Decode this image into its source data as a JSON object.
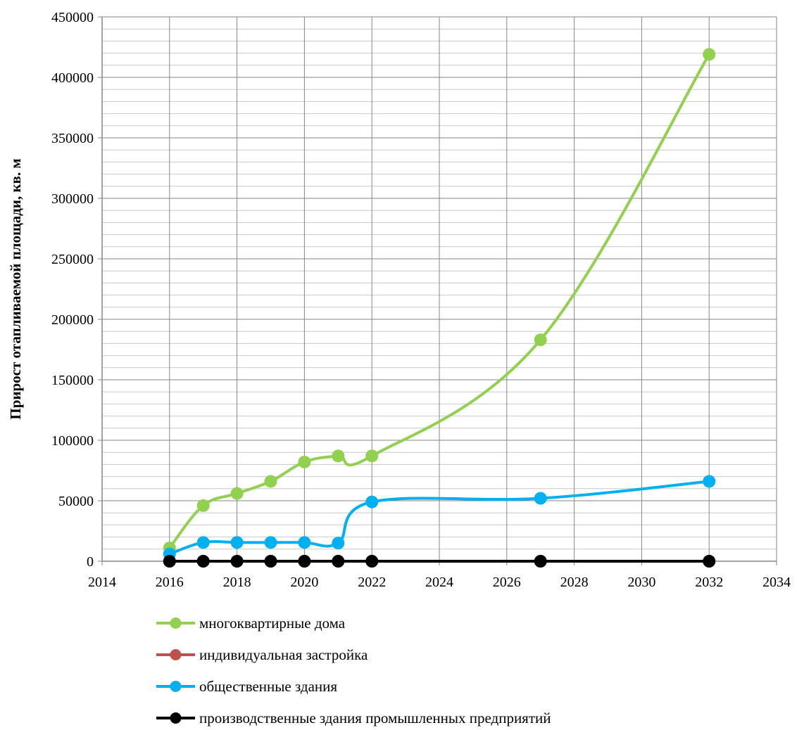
{
  "chart_data": {
    "type": "line",
    "title": "",
    "xlabel": "",
    "ylabel": "Прирост отапливаемой площади, кв. м",
    "xlim": [
      2014,
      2034
    ],
    "ylim": [
      0,
      450000
    ],
    "x_ticks": [
      2014,
      2016,
      2018,
      2020,
      2022,
      2024,
      2026,
      2028,
      2030,
      2032,
      2034
    ],
    "y_ticks": [
      0,
      50000,
      100000,
      150000,
      200000,
      250000,
      300000,
      350000,
      400000,
      450000
    ],
    "x_tick_labels": [
      "2014",
      "2016",
      "2018",
      "2020",
      "2022",
      "2024",
      "2026",
      "2028",
      "2030",
      "2032",
      "2034"
    ],
    "y_tick_labels": [
      "0",
      "50000",
      "100000",
      "150000",
      "200000",
      "250000",
      "300000",
      "350000",
      "400000",
      "450000"
    ],
    "grid": true,
    "minor_y_step": 10000,
    "legend_position": "bottom",
    "series": [
      {
        "name": "многоквартирные дома",
        "color": "#92D050",
        "x": [
          2016,
          2017,
          2018,
          2019,
          2020,
          2021,
          2022,
          2027,
          2032
        ],
        "y": [
          11000,
          46000,
          56000,
          66000,
          82000,
          87000,
          87000,
          183000,
          419000
        ]
      },
      {
        "name": "индивидуальная застройка",
        "color": "#C0504D",
        "x": [
          2016,
          2017,
          2018,
          2019,
          2020,
          2021,
          2022,
          2027,
          2032
        ],
        "y": [
          0,
          0,
          0,
          0,
          0,
          0,
          0,
          0,
          0
        ]
      },
      {
        "name": "общественные здания",
        "color": "#00B0F0",
        "x": [
          2016,
          2017,
          2018,
          2019,
          2020,
          2021,
          2022,
          2027,
          2032
        ],
        "y": [
          6000,
          15500,
          15500,
          15500,
          15500,
          15000,
          49000,
          52000,
          66000
        ]
      },
      {
        "name": "производственные здания промышленных предприятий",
        "color": "#000000",
        "x": [
          2016,
          2017,
          2018,
          2019,
          2020,
          2021,
          2022,
          2027,
          2032
        ],
        "y": [
          0,
          0,
          0,
          0,
          0,
          0,
          0,
          0,
          0
        ]
      }
    ]
  }
}
